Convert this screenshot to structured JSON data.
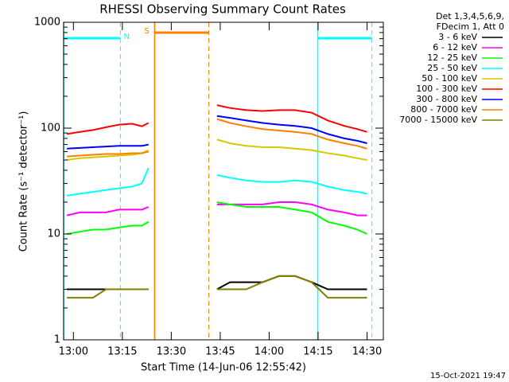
{
  "chart_data": {
    "type": "line",
    "title": "RHESSI Observing Summary Count Rates",
    "xlabel": "Start Time (14-Jun-06 12:55:42)",
    "ylabel": "Count Rate (s⁻¹ detector⁻¹)",
    "footer": "15-Oct-2021 19:47",
    "legend_header": [
      "Det 1,3,4,5,6,9,",
      "FDecim 1, Att 0"
    ],
    "log_y": true,
    "grid": false,
    "xlim": [
      777,
      875
    ],
    "xticks": [
      {
        "value": 780,
        "label": "13:00"
      },
      {
        "value": 795,
        "label": "13:15"
      },
      {
        "value": 810,
        "label": "13:30"
      },
      {
        "value": 825,
        "label": "13:45"
      },
      {
        "value": 840,
        "label": "14:00"
      },
      {
        "value": 855,
        "label": "14:15"
      },
      {
        "value": 870,
        "label": "14:30"
      }
    ],
    "ylim": [
      1,
      1000
    ],
    "yticks": [
      1,
      10,
      100,
      1000
    ],
    "x": [
      778,
      782,
      786,
      790,
      794,
      798,
      801,
      803,
      813,
      824,
      828,
      833,
      838,
      843,
      848,
      853,
      858,
      863,
      867,
      870
    ],
    "series": [
      {
        "name": "3 - 6 keV",
        "color": "#000000",
        "values": [
          3,
          3,
          3,
          3,
          3,
          3,
          3,
          3,
          null,
          3,
          3.5,
          3.5,
          3.5,
          4,
          4,
          3.5,
          3,
          3,
          3,
          3
        ]
      },
      {
        "name": "6 - 12 keV",
        "color": "#ff00ff",
        "values": [
          15,
          16,
          16,
          16,
          17,
          17,
          17,
          18,
          null,
          19,
          19,
          19,
          19,
          20,
          20,
          19,
          17,
          16,
          15,
          15
        ]
      },
      {
        "name": "12 - 25 keV",
        "color": "#00ff00",
        "values": [
          10,
          10.5,
          11,
          11,
          11.5,
          12,
          12,
          13,
          null,
          20,
          19,
          18,
          18,
          18,
          17,
          16,
          13,
          12,
          11,
          10
        ]
      },
      {
        "name": "25 - 50 keV",
        "color": "#00ffff",
        "values": [
          23,
          24,
          25,
          26,
          27,
          28,
          30,
          42,
          null,
          36,
          34,
          32,
          31,
          31,
          32,
          31,
          28,
          26,
          25,
          24
        ]
      },
      {
        "name": "50 - 100 keV",
        "color": "#d8c800",
        "values": [
          50,
          52,
          53,
          54,
          55,
          56,
          58,
          62,
          null,
          78,
          72,
          68,
          66,
          66,
          64,
          62,
          58,
          55,
          52,
          50
        ]
      },
      {
        "name": "100 - 300 keV",
        "color": "#ff0000",
        "values": [
          88,
          92,
          96,
          102,
          108,
          110,
          104,
          112,
          null,
          165,
          155,
          148,
          145,
          148,
          148,
          140,
          118,
          105,
          98,
          92
        ]
      },
      {
        "name": "300 - 800 keV",
        "color": "#0000ff",
        "values": [
          64,
          65,
          66,
          67,
          68,
          68,
          68,
          70,
          null,
          130,
          125,
          118,
          112,
          108,
          105,
          100,
          88,
          80,
          76,
          72
        ]
      },
      {
        "name": "800 - 7000 keV",
        "color": "#ff7f00",
        "values": [
          54,
          55,
          56,
          57,
          57,
          58,
          58,
          60,
          null,
          122,
          112,
          104,
          98,
          95,
          92,
          88,
          78,
          72,
          68,
          64
        ]
      },
      {
        "name": "7000 - 15000 keV",
        "color": "#808000",
        "values": [
          2.5,
          2.5,
          2.5,
          3,
          3,
          3,
          3,
          3,
          null,
          3,
          3,
          3,
          3.5,
          4,
          4,
          3.5,
          2.5,
          2.5,
          2.5,
          2.5
        ]
      }
    ],
    "annotations": [
      {
        "label": "N",
        "color": "#00ffff",
        "start": 777,
        "end": 794.4
      },
      {
        "label": "S",
        "color": "#ff7f00",
        "start": 804.9,
        "end": 821.5
      },
      {
        "color": "#00ffff",
        "start": 854.9,
        "end": 871.5
      }
    ]
  }
}
